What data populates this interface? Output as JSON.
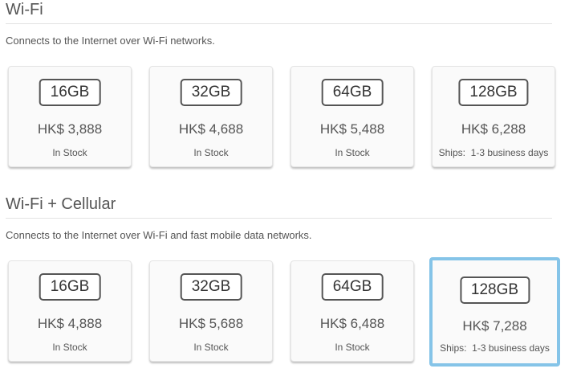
{
  "sections": [
    {
      "title": "Wi-Fi",
      "description": "Connects to the Internet over Wi-Fi networks.",
      "options": [
        {
          "capacity": "16GB",
          "price": "HK$ 3,888",
          "status": "In Stock"
        },
        {
          "capacity": "32GB",
          "price": "HK$ 4,688",
          "status": "In Stock"
        },
        {
          "capacity": "64GB",
          "price": "HK$ 5,488",
          "status": "In Stock"
        },
        {
          "capacity": "128GB",
          "price": "HK$ 6,288",
          "status": "Ships:  1-3 business days"
        }
      ]
    },
    {
      "title": "Wi-Fi + Cellular",
      "description": "Connects to the Internet over Wi-Fi and fast mobile data networks.",
      "options": [
        {
          "capacity": "16GB",
          "price": "HK$ 4,888",
          "status": "In Stock"
        },
        {
          "capacity": "32GB",
          "price": "HK$ 5,688",
          "status": "In Stock"
        },
        {
          "capacity": "64GB",
          "price": "HK$ 6,488",
          "status": "In Stock"
        },
        {
          "capacity": "128GB",
          "price": "HK$ 7,288",
          "status": "Ships:  1-3 business days",
          "selected": true
        }
      ]
    }
  ],
  "colors": {
    "selected_border": "#85c4e8"
  }
}
